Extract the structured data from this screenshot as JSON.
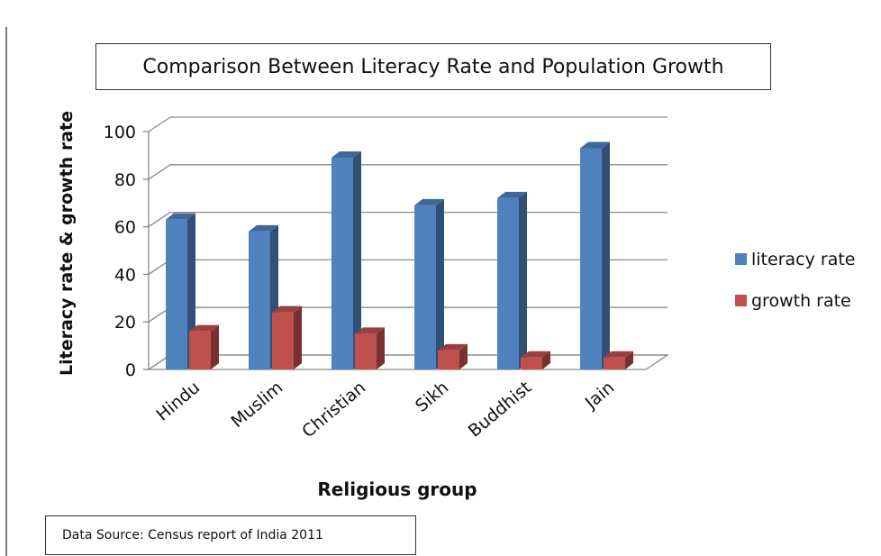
{
  "chart_data": {
    "type": "bar",
    "title": "Comparison Between Literacy Rate and Population Growth",
    "xlabel": "Religious group",
    "ylabel": "Literacy rate & growth rate",
    "categories": [
      "Hindu",
      "Muslim",
      "Christian",
      "Sikh",
      "Buddhist",
      "Jain"
    ],
    "series": [
      {
        "name": "literacy rate",
        "color": "#4f81bd",
        "values": [
          63,
          58,
          89,
          69,
          72,
          93
        ]
      },
      {
        "name": "growth rate",
        "color": "#c0504d",
        "values": [
          16,
          24,
          15,
          8,
          5,
          5
        ]
      }
    ],
    "ylim": [
      0,
      100
    ],
    "yticks": [
      0,
      20,
      40,
      60,
      80,
      100
    ],
    "legend_position": "right",
    "grid": true,
    "source_note": "Data Source: Census  report of India 2011"
  }
}
